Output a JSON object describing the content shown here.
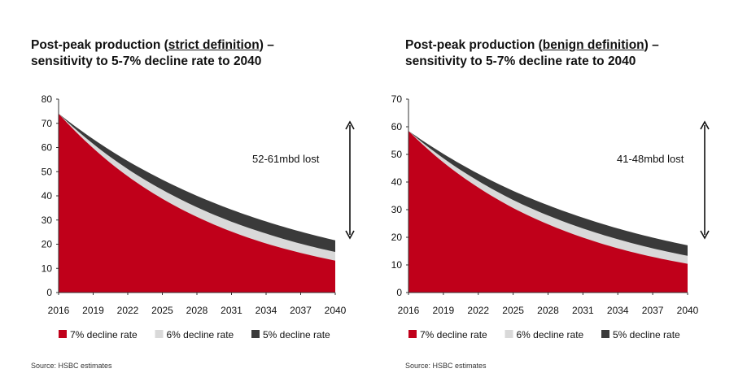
{
  "chart_data": [
    {
      "type": "area",
      "title_parts": [
        "Post-peak production (",
        "strict definition",
        ") –"
      ],
      "title_line2": "sensitivity to 5-7% decline rate to 2040",
      "x_ticks": [
        "2016",
        "2019",
        "2022",
        "2025",
        "2028",
        "2031",
        "2034",
        "2037",
        "2040"
      ],
      "x": [
        2016,
        2019,
        2022,
        2025,
        2028,
        2031,
        2034,
        2037,
        2040
      ],
      "ylim": [
        0,
        80
      ],
      "y_ticks": [
        0,
        10,
        20,
        30,
        40,
        50,
        60,
        70,
        80
      ],
      "series": [
        {
          "name": "7% decline rate",
          "color": "#c0001a",
          "values": [
            74,
            59.7,
            48.1,
            38.8,
            31.3,
            25.2,
            20.3,
            16.4,
            13.2
          ]
        },
        {
          "name": "6% decline rate",
          "color": "#d9d9d9",
          "values": [
            74,
            61.5,
            51.1,
            42.5,
            35.3,
            29.3,
            24.4,
            20.2,
            16.8
          ]
        },
        {
          "name": "5% decline rate",
          "color": "#3a3a3a",
          "values": [
            74,
            63.5,
            54.4,
            46.7,
            40.0,
            34.3,
            29.4,
            25.2,
            21.6
          ]
        }
      ],
      "annotation": "52-61mbd lost",
      "source": "Source: HSBC estimates"
    },
    {
      "type": "area",
      "title_parts": [
        "Post-peak production (",
        "benign definition",
        ") –"
      ],
      "title_line2": "sensitivity to 5-7% decline rate to 2040",
      "x_ticks": [
        "2016",
        "2019",
        "2022",
        "2025",
        "2028",
        "2031",
        "2034",
        "2037",
        "2040"
      ],
      "x": [
        2016,
        2019,
        2022,
        2025,
        2028,
        2031,
        2034,
        2037,
        2040
      ],
      "ylim": [
        0,
        70
      ],
      "y_ticks": [
        0,
        10,
        20,
        30,
        40,
        50,
        60,
        70
      ],
      "series": [
        {
          "name": "7% decline rate",
          "color": "#c0001a",
          "values": [
            58.5,
            47.1,
            38.0,
            30.6,
            24.7,
            19.9,
            16.0,
            12.9,
            10.4
          ]
        },
        {
          "name": "6% decline rate",
          "color": "#d9d9d9",
          "values": [
            58.5,
            48.6,
            40.4,
            33.5,
            27.9,
            23.2,
            19.3,
            16.0,
            13.3
          ]
        },
        {
          "name": "5% decline rate",
          "color": "#3a3a3a",
          "values": [
            58.5,
            50.2,
            43.0,
            36.8,
            31.6,
            27.1,
            23.2,
            19.9,
            17.1
          ]
        }
      ],
      "annotation": "41-48mbd lost",
      "source": "Source: HSBC estimates"
    }
  ]
}
